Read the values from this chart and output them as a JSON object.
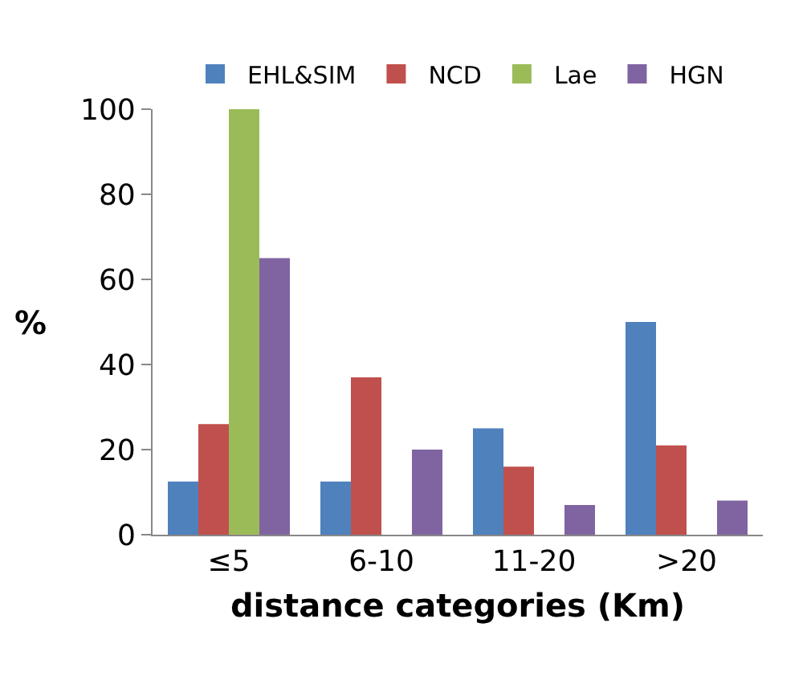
{
  "chart_data": {
    "type": "bar",
    "xlabel": "distance categories (Km)",
    "ylabel": "%",
    "categories": [
      "≤5",
      "6-10",
      "11-20",
      ">20"
    ],
    "series": [
      {
        "name": "EHL&SIM",
        "color": "#4f81bd",
        "values": [
          12.5,
          12.5,
          25,
          50
        ]
      },
      {
        "name": "NCD",
        "color": "#c0504d",
        "values": [
          26,
          37,
          16,
          21
        ]
      },
      {
        "name": "Lae",
        "color": "#9bbb59",
        "values": [
          100,
          0,
          0,
          0
        ]
      },
      {
        "name": "HGN",
        "color": "#8064a2",
        "values": [
          65,
          20,
          7,
          8
        ]
      }
    ],
    "ylim": [
      0,
      100
    ],
    "yticks": [
      0,
      20,
      40,
      60,
      80,
      100
    ],
    "grid": false,
    "legend": "top"
  }
}
